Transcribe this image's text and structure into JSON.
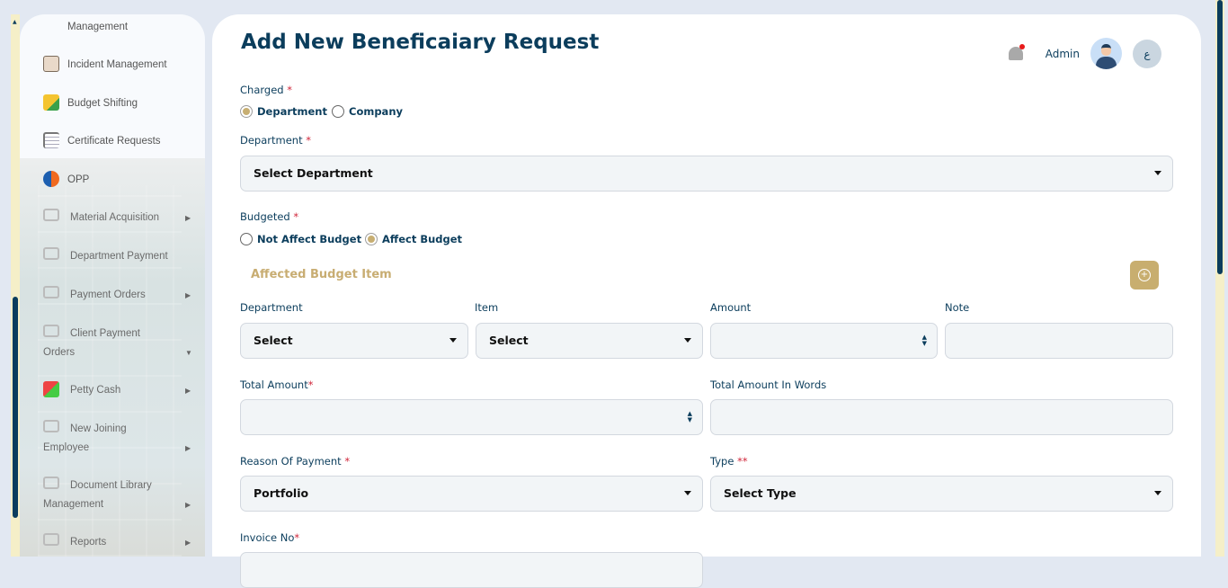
{
  "sidebar": {
    "items": [
      {
        "label": "Management"
      },
      {
        "label": "Incident Management"
      },
      {
        "label": "Budget Shifting"
      },
      {
        "label": "Certificate Requests"
      },
      {
        "label": "OPP"
      },
      {
        "label": "Material Acquisition"
      },
      {
        "label": "Department Payment"
      },
      {
        "label": "Payment Orders"
      },
      {
        "label": "Client Payment",
        "label2": "Orders"
      },
      {
        "label": "Petty Cash"
      },
      {
        "label": "New Joining",
        "label2": "Employee"
      },
      {
        "label": "Document Library",
        "label2": "Management"
      },
      {
        "label": "Reports"
      }
    ]
  },
  "header": {
    "title": "Add New Beneficaiary Request",
    "user": "Admin",
    "lang": "ع"
  },
  "form": {
    "charged": {
      "label": "Charged",
      "options": [
        "Department",
        "Company"
      ],
      "selected": "Department"
    },
    "department": {
      "label": "Department",
      "value": "Select Department"
    },
    "budgeted": {
      "label": "Budgeted",
      "options": [
        "Not Affect Budget",
        "Affect Budget"
      ],
      "selected": "Affect Budget"
    },
    "affected_section": "Affected Budget Item",
    "item_row": {
      "department_label": "Department",
      "department_value": "Select",
      "item_label": "Item",
      "item_value": "Select",
      "amount_label": "Amount",
      "amount_value": "",
      "note_label": "Note",
      "note_value": ""
    },
    "total_amount": {
      "label": "Total Amount",
      "value": ""
    },
    "total_words": {
      "label": "Total Amount In Words",
      "value": ""
    },
    "reason": {
      "label": "Reason Of Payment",
      "value": "Portfolio"
    },
    "type": {
      "label": "Type",
      "required": "**",
      "value": "Select Type"
    },
    "invoice": {
      "label": "Invoice No"
    },
    "required_mark": "*"
  },
  "colors": {
    "primary": "#0b3d5c",
    "accent": "#c8ae6f",
    "required": "#d0273b"
  }
}
